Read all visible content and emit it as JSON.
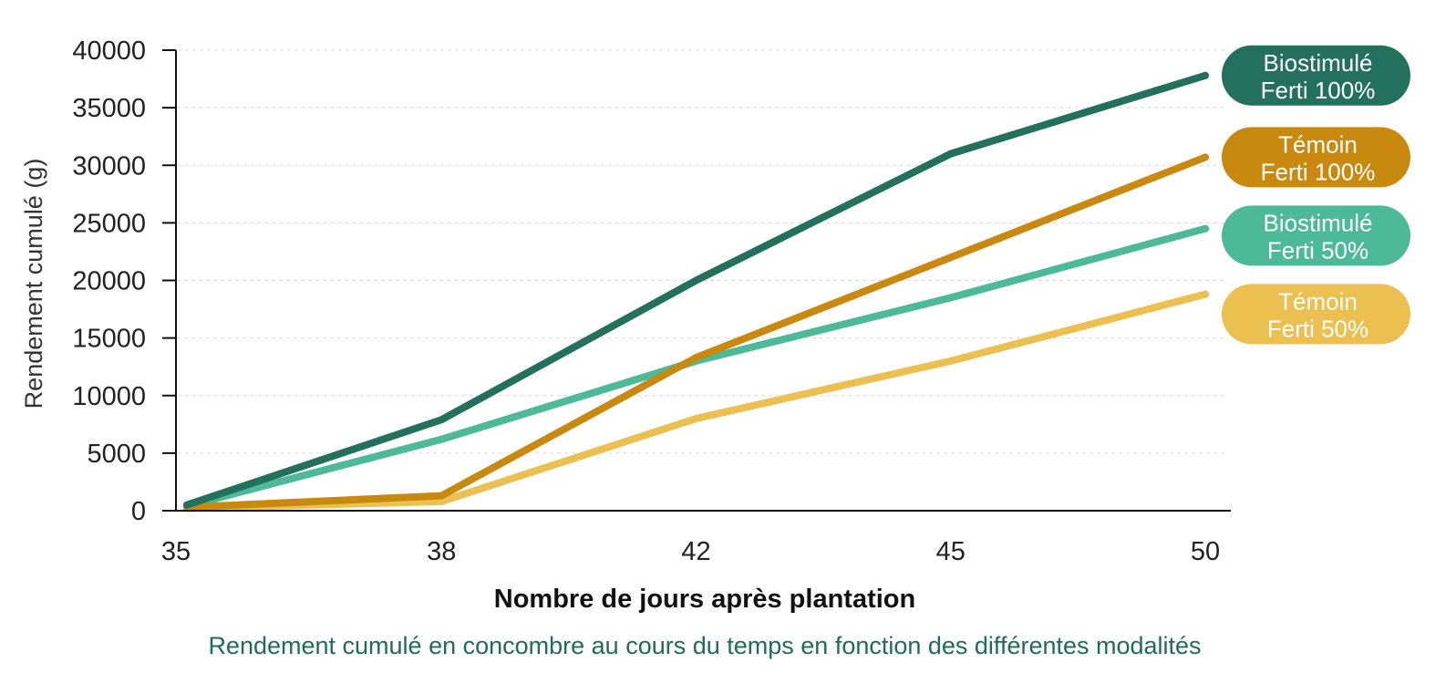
{
  "chart_data": {
    "type": "line",
    "title": "",
    "xlabel": "Nombre de jours après plantation",
    "ylabel": "Rendement cumulé (g)",
    "caption": "Rendement cumulé en concombre au cours du temps en fonction des différentes modalités",
    "categories": [
      "35",
      "38",
      "42",
      "45",
      "50"
    ],
    "ylim": [
      0,
      40000
    ],
    "yticks": [
      "0",
      "5000",
      "10000",
      "15000",
      "20000",
      "25000",
      "30000",
      "35000",
      "40000"
    ],
    "grid": true,
    "legend_position": "right",
    "series": [
      {
        "name": "Témoin Ferti 50%",
        "label_lines": [
          "Témoin",
          "Ferti 50%"
        ],
        "color": "#ecc050",
        "values": [
          200,
          800,
          8000,
          13000,
          18800
        ]
      },
      {
        "name": "Biostimulé Ferti 50%",
        "label_lines": [
          "Biostimulé",
          "Ferti 50%"
        ],
        "color": "#4cba98",
        "values": [
          400,
          6200,
          13000,
          18500,
          24500
        ]
      },
      {
        "name": "Témoin Ferti 100%",
        "label_lines": [
          "Témoin",
          "Ferti 100%"
        ],
        "color": "#c9890f",
        "values": [
          300,
          1300,
          13300,
          22000,
          30700
        ]
      },
      {
        "name": "Biostimulé Ferti 100%",
        "label_lines": [
          "Biostimulé",
          "Ferti 100%"
        ],
        "color": "#23705d",
        "values": [
          500,
          7900,
          20000,
          31000,
          37800
        ]
      }
    ]
  }
}
